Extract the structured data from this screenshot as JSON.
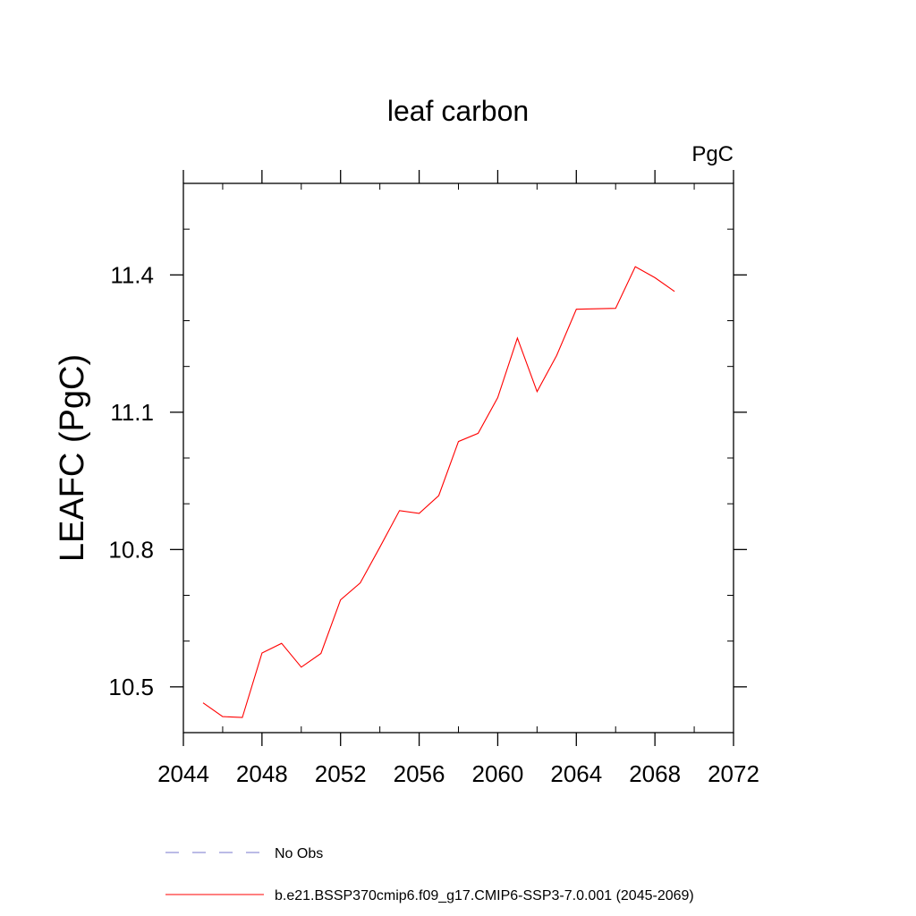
{
  "chart_data": {
    "type": "line",
    "title": "leaf carbon",
    "units": "PgC",
    "xlabel": "",
    "ylabel": "LEAFC  (PgC)",
    "xlim": [
      2044,
      2072
    ],
    "ylim": [
      10.4,
      11.6
    ],
    "x_ticks": [
      "2044",
      "2048",
      "2052",
      "2056",
      "2060",
      "2064",
      "2068",
      "2072"
    ],
    "y_ticks": [
      "10.5",
      "10.8",
      "11.1",
      "11.4"
    ],
    "grid": false,
    "legend_position": "bottom",
    "series": [
      {
        "name": "b.e21.BSSP370cmip6.f09_g17.CMIP6-SSP3-7.0.001 (2045-2069)",
        "color": "#ff0000",
        "style": "solid",
        "x": [
          2045,
          2046,
          2047,
          2048,
          2049,
          2050,
          2051,
          2052,
          2053,
          2054,
          2055,
          2056,
          2057,
          2058,
          2059,
          2060,
          2061,
          2062,
          2063,
          2064,
          2065,
          2066,
          2067,
          2068,
          2069
        ],
        "y": [
          10.465,
          10.435,
          10.433,
          10.574,
          10.595,
          10.543,
          10.573,
          10.69,
          10.727,
          10.805,
          10.885,
          10.879,
          10.918,
          11.036,
          11.054,
          11.132,
          11.262,
          11.145,
          11.224,
          11.325,
          11.326,
          11.327,
          11.418,
          11.394,
          11.364
        ]
      }
    ],
    "legend": [
      {
        "label": "No Obs",
        "color": "#7777cc",
        "style": "dashed"
      },
      {
        "label": "b.e21.BSSP370cmip6.f09_g17.CMIP6-SSP3-7.0.001 (2045-2069)",
        "color": "#ff0000",
        "style": "solid"
      }
    ]
  }
}
